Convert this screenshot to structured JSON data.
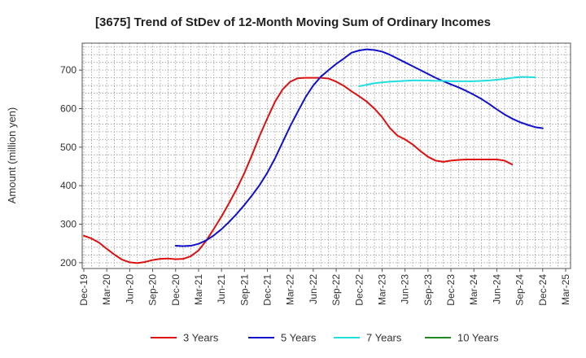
{
  "chart_data": {
    "type": "line",
    "title": "[3675]  Trend of StDev of 12-Month Moving Sum of Ordinary Incomes",
    "xlabel": "",
    "ylabel": "Amount (million yen)",
    "ylim": [
      185,
      770
    ],
    "yticks": [
      200,
      300,
      400,
      500,
      600,
      700
    ],
    "grid": true,
    "legend_position": "bottom",
    "x_tick_labels": [
      "Dec-19",
      "Mar-20",
      "Jun-20",
      "Sep-20",
      "Dec-20",
      "Mar-21",
      "Jun-21",
      "Sep-21",
      "Dec-21",
      "Mar-22",
      "Jun-22",
      "Sep-22",
      "Dec-22",
      "Mar-23",
      "Jun-23",
      "Sep-23",
      "Dec-23",
      "Mar-24",
      "Jun-24",
      "Sep-24",
      "Dec-24",
      "Mar-25"
    ],
    "x_start_month": "Dec-19",
    "series": [
      {
        "name": "3 Years",
        "color": "#dd1111",
        "start_index": 0,
        "values": [
          270,
          263,
          252,
          236,
          221,
          208,
          201,
          199,
          202,
          207,
          210,
          211,
          209,
          210,
          217,
          232,
          257,
          288,
          320,
          355,
          392,
          433,
          480,
          530,
          575,
          618,
          650,
          670,
          679,
          680,
          680,
          680,
          678,
          670,
          659,
          645,
          632,
          618,
          600,
          578,
          550,
          530,
          520,
          507,
          490,
          475,
          465,
          462,
          465,
          467,
          468,
          468,
          468,
          468,
          468,
          465,
          455
        ]
      },
      {
        "name": "5 Years",
        "color": "#1111cc",
        "start_index": 12,
        "values": [
          244,
          243,
          244,
          249,
          258,
          271,
          287,
          306,
          327,
          350,
          375,
          402,
          434,
          471,
          513,
          555,
          593,
          630,
          660,
          683,
          700,
          716,
          730,
          745,
          751,
          754,
          752,
          748,
          740,
          730,
          720,
          710,
          700,
          690,
          680,
          671,
          663,
          655,
          646,
          636,
          625,
          612,
          598,
          585,
          574,
          565,
          558,
          552,
          549
        ]
      },
      {
        "name": "7 Years",
        "color": "#22dddd",
        "start_index": 36,
        "values": [
          658,
          662,
          666,
          668,
          670,
          671,
          672,
          673,
          673,
          673,
          672,
          672,
          671,
          671,
          671,
          671,
          672,
          673,
          675,
          677,
          680,
          682,
          682,
          681
        ]
      },
      {
        "name": "10 Years",
        "color": "#228822",
        "start_index": 0,
        "values": []
      }
    ]
  }
}
